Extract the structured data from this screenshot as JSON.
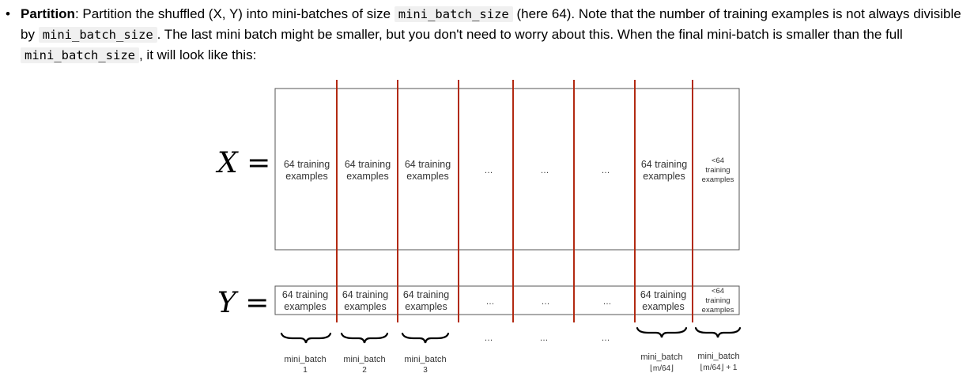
{
  "paragraph": {
    "bullet": "•",
    "term": "Partition",
    "seg1": ": Partition the shuffled (X, Y) into mini-batches of size ",
    "code1": "mini_batch_size",
    "seg2": " (here 64). Note that the number of training examples is not always divisible by ",
    "code2": "mini_batch_size",
    "seg3": ". The last mini batch might be smaller, but you don't need to worry about this. When the final mini-batch is smaller than the full ",
    "code3": "mini_batch_size",
    "seg4": ", it will look like this:"
  },
  "figure": {
    "x_label": "X =",
    "y_label": "Y =",
    "cell_full_line1": "64 training",
    "cell_full_line2": "examples",
    "cell_last_line1": "<64",
    "cell_last_line2": "training",
    "cell_last_line3": "examples",
    "ellipsis": "…",
    "batches": [
      {
        "name": "mini_batch",
        "index": "1"
      },
      {
        "name": "mini_batch",
        "index": "2"
      },
      {
        "name": "mini_batch",
        "index": "3"
      },
      {
        "name": "mini_batch",
        "index": "⌊m/64⌋"
      },
      {
        "name": "mini_batch",
        "index": "⌊m/64⌋ + 1"
      }
    ],
    "colors": {
      "divider": "#b22a12",
      "box_border": "#555555"
    }
  }
}
